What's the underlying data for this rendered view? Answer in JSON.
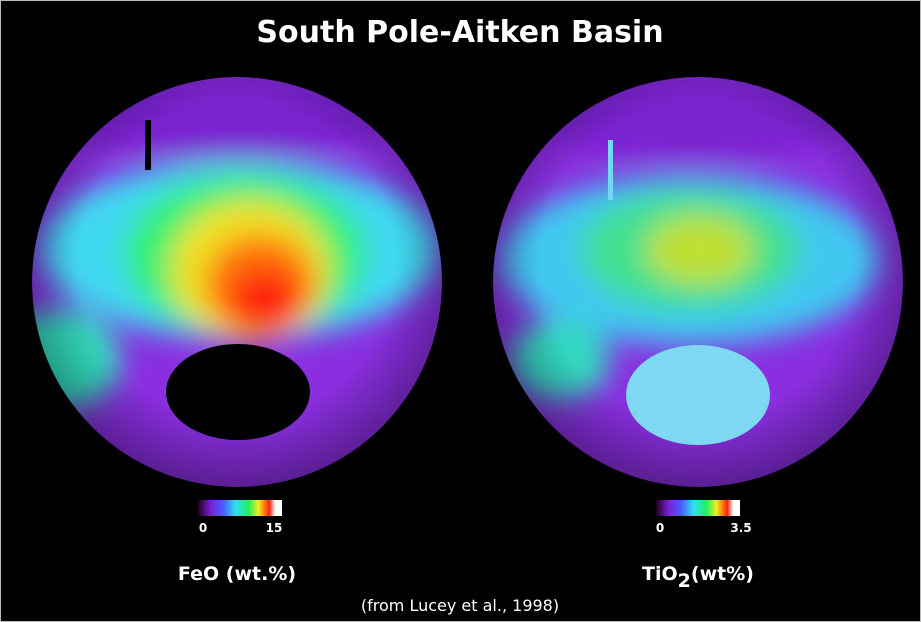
{
  "title": "South Pole-Aitken Basin",
  "panels": [
    {
      "label": [
        "FeO",
        "(wt.%)"
      ],
      "colorbar": {
        "min": 0,
        "max": 15
      }
    },
    {
      "label": [
        "TiO",
        "2",
        "(wt%)"
      ],
      "colorbar": {
        "min": 0,
        "max": 3.5
      }
    }
  ],
  "caption": "(from Lucey et al., 1998)"
}
